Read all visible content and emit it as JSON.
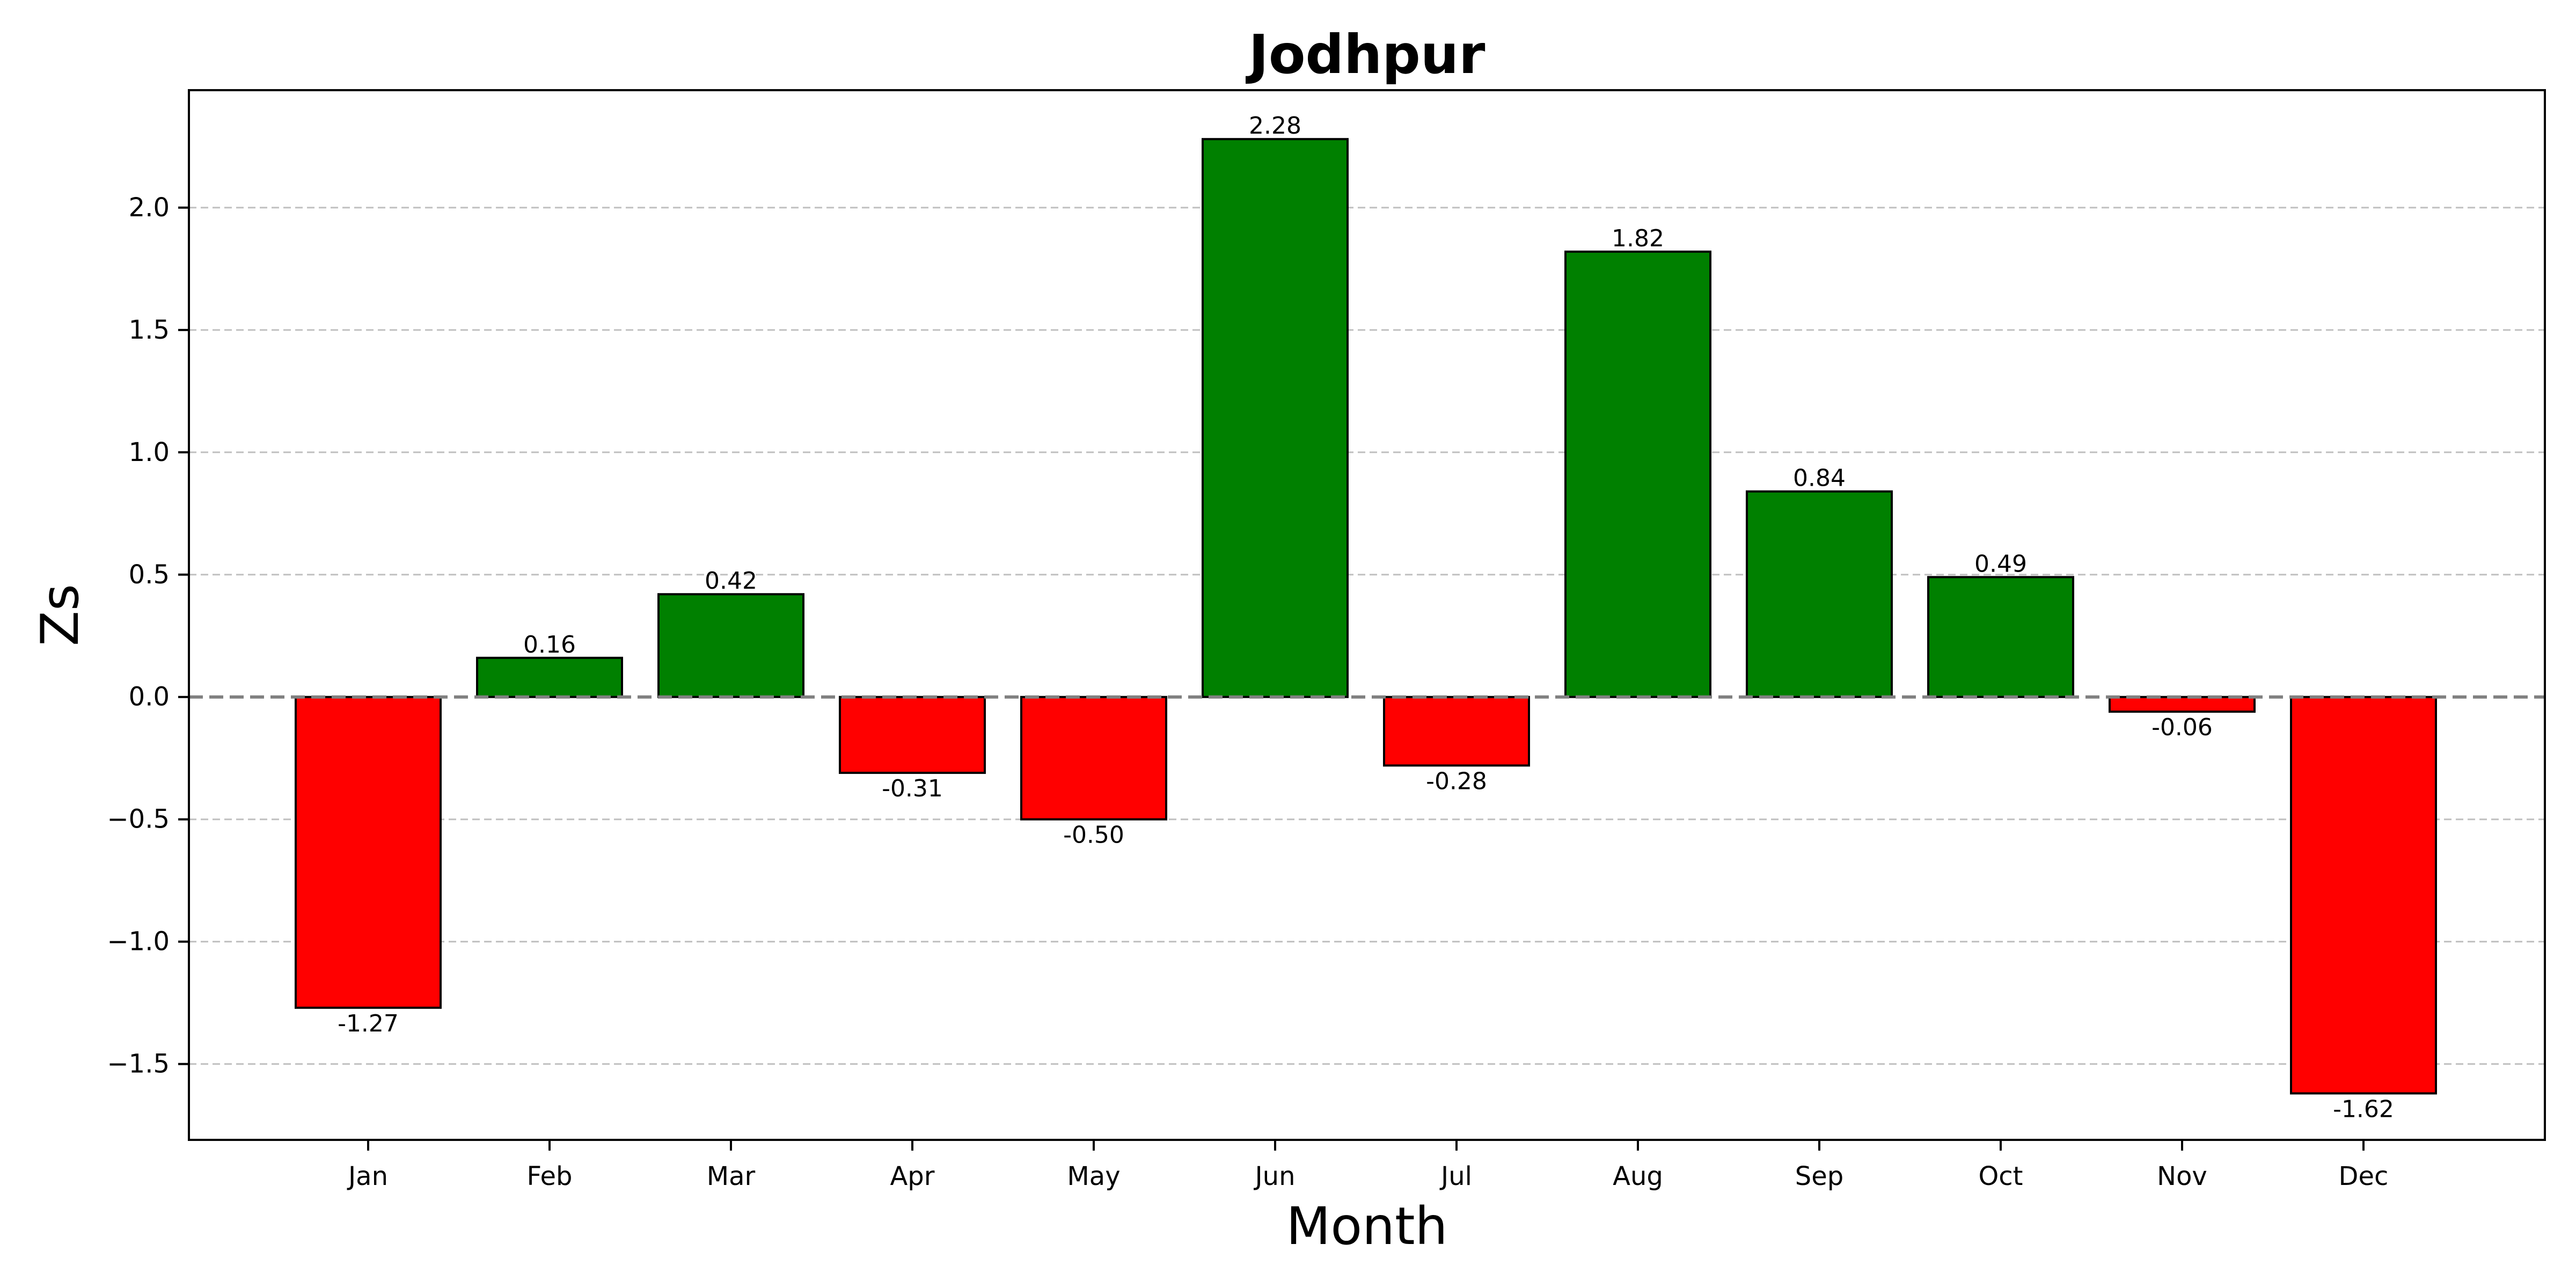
{
  "chart_data": {
    "type": "bar",
    "title": "Jodhpur",
    "xlabel": "Month",
    "ylabel": "Zs",
    "categories": [
      "Jan",
      "Feb",
      "Mar",
      "Apr",
      "May",
      "Jun",
      "Jul",
      "Aug",
      "Sep",
      "Oct",
      "Nov",
      "Dec"
    ],
    "values": [
      -1.27,
      0.16,
      0.42,
      -0.31,
      -0.5,
      2.28,
      -0.28,
      1.82,
      0.84,
      0.49,
      -0.06,
      -1.62
    ],
    "data_labels": [
      "-1.27",
      "0.16",
      "0.42",
      "-0.31",
      "-0.50",
      "2.28",
      "-0.28",
      "1.82",
      "0.84",
      "0.49",
      "-0.06",
      "-1.62"
    ],
    "ylim": [
      -1.81,
      2.48
    ],
    "yticks": [
      -1.5,
      -1.0,
      -0.5,
      0.0,
      0.5,
      1.0,
      1.5,
      2.0
    ],
    "ytick_labels": [
      "−1.5",
      "−1.0",
      "−0.5",
      "0.0",
      "0.5",
      "1.0",
      "1.5",
      "2.0"
    ],
    "grid": "y-dashed",
    "zero_line": "dashed",
    "colors": {
      "positive": "#008000",
      "negative": "#ff0000",
      "edge": "#000000",
      "grid": "#c0c0c0",
      "zero_line": "#808080"
    }
  }
}
